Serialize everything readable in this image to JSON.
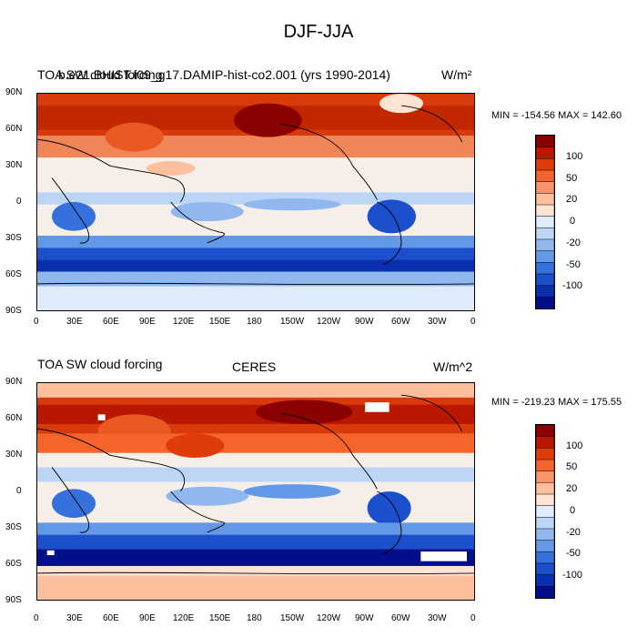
{
  "title": "DJF-JJA",
  "panels": [
    {
      "id": "model",
      "left_title": "TOA SW cloud forcing",
      "center_title": "b.e21.BHIST.f09_g17.DAMIP-hist-co2.001 (yrs 1990-2014)",
      "units": "W/m²",
      "stats": "MIN = -154.56 MAX = 142.60"
    },
    {
      "id": "obs",
      "left_title": "TOA SW cloud forcing",
      "center_title": "CERES",
      "units": "W/m^2",
      "stats": "MIN = -219.23 MAX = 175.55"
    }
  ],
  "lat_ticks": [
    "90N",
    "60N",
    "30N",
    "0",
    "30S",
    "60S",
    "90S"
  ],
  "lon_ticks": [
    "0",
    "30E",
    "60E",
    "90E",
    "120E",
    "150E",
    "180",
    "150W",
    "120W",
    "90W",
    "60W",
    "30W",
    "0"
  ],
  "colorbar": {
    "labels": [
      "100",
      "50",
      "20",
      "0",
      "-20",
      "-50",
      "-100"
    ],
    "colors": [
      "#8b0000",
      "#b81800",
      "#e03c0a",
      "#f5652b",
      "#fa936a",
      "#fdbf9e",
      "#fde3d3",
      "#ddebfa",
      "#bcd5f5",
      "#90b8ef",
      "#6298e6",
      "#3571dc",
      "#1c4fcc",
      "#0a2fb0",
      "#030f8a"
    ]
  }
}
